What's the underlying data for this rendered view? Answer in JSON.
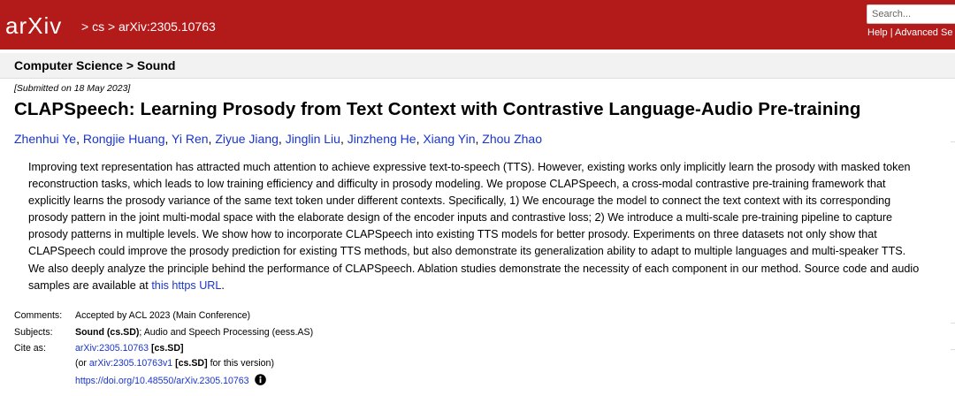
{
  "header": {
    "logo": "arXiv",
    "breadcrumb": "> cs > arXiv:2305.10763",
    "search_placeholder": "Search...",
    "links": [
      "Help",
      "Advanced Se"
    ],
    "link_separator": "|"
  },
  "subheader": "Computer Science > Sound",
  "submitted": "[Submitted on 18 May 2023]",
  "title": "CLAPSpeech: Learning Prosody from Text Context with Contrastive Language-Audio Pre-training",
  "authors": [
    "Zhenhui Ye",
    "Rongjie Huang",
    "Yi Ren",
    "Ziyue Jiang",
    "Jinglin Liu",
    "Jinzheng He",
    "Xiang Yin",
    "Zhou Zhao"
  ],
  "author_separator": ",",
  "abstract": {
    "text": "Improving text representation has attracted much attention to achieve expressive text-to-speech (TTS). However, existing works only implicitly learn the prosody with masked token reconstruction tasks, which leads to low training efficiency and difficulty in prosody modeling. We propose CLAPSpeech, a cross-modal contrastive pre-training framework that explicitly learns the prosody variance of the same text token under different contexts. Specifically, 1) We encourage the model to connect the text context with its corresponding prosody pattern in the joint multi-modal space with the elaborate design of the encoder inputs and contrastive loss; 2) We introduce a multi-scale pre-training pipeline to capture prosody patterns in multiple levels. We show how to incorporate CLAPSpeech into existing TTS models for better prosody. Experiments on three datasets not only show that CLAPSpeech could improve the prosody prediction for existing TTS methods, but also demonstrate its generalization ability to adapt to multiple languages and multi-speaker TTS. We also deeply analyze the principle behind the performance of CLAPSpeech. Ablation studies demonstrate the necessity of each component in our method. Source code and audio samples are available at",
    "link": "this https URL",
    "end": "."
  },
  "metadata": {
    "comments": {
      "label": "Comments:",
      "value": "Accepted by ACL 2023 (Main Conference)"
    },
    "subjects": {
      "label": "Subjects:",
      "primary": "Sound (cs.SD)",
      "rest": "; Audio and Speech Processing (eess.AS)"
    },
    "cite_as": {
      "label": "Cite as:",
      "line1": {
        "link": "arXiv:2305.10763",
        "tag": "[cs.SD]"
      },
      "line2": {
        "prefix": "(or",
        "link": "arXiv:2305.10763v1",
        "tag": "[cs.SD]",
        "suffix": "for this version)"
      },
      "line3": {
        "link": "https://doi.org/10.48550/arXiv.2305.10763"
      }
    }
  }
}
